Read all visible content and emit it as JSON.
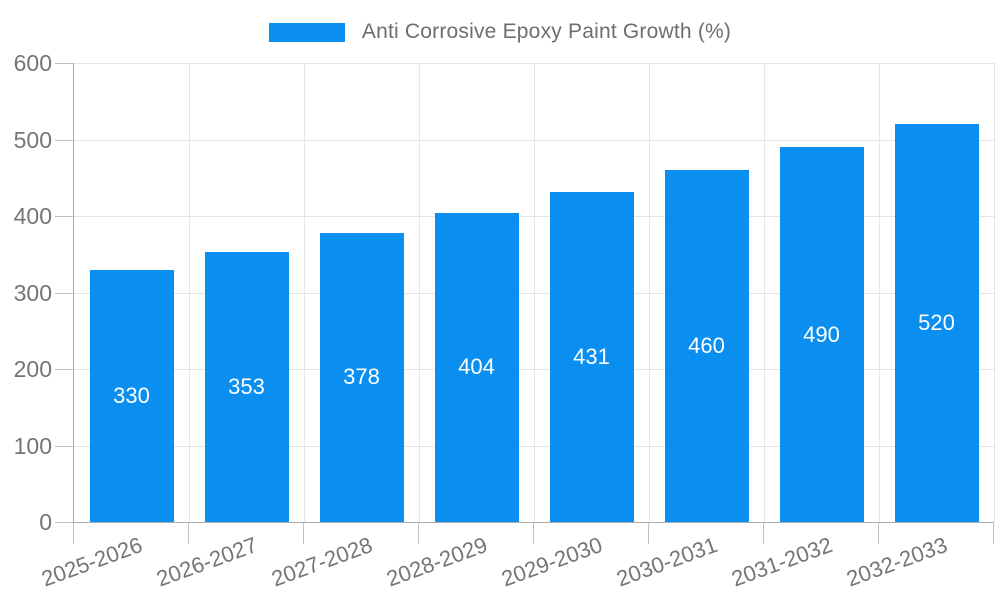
{
  "legend": {
    "label": "Anti Corrosive Epoxy Paint Growth (%)"
  },
  "colors": {
    "bar": "#0a8ff0",
    "grid": "#e5e5e5",
    "axis": "#ababab",
    "tick_mark": "#c2c2c2",
    "tick_text": "#757575",
    "legend_text": "#6e6e6e",
    "value_label_text": "#ffffff",
    "background": "#ffffff"
  },
  "chart_data": {
    "type": "bar",
    "title": "Anti Corrosive Epoxy Paint Growth (%)",
    "categories": [
      "2025-2026",
      "2026-2027",
      "2027-2028",
      "2028-2029",
      "2029-2030",
      "2030-2031",
      "2031-2032",
      "2032-2033"
    ],
    "values": [
      330,
      353,
      378,
      404,
      431,
      460,
      490,
      520
    ],
    "series": [
      {
        "name": "Anti Corrosive Epoxy Paint Growth (%)",
        "values": [
          330,
          353,
          378,
          404,
          431,
          460,
          490,
          520
        ]
      }
    ],
    "value_labels_shown": true,
    "value_label_position": "inside-center",
    "xlabel": "",
    "ylabel": "",
    "ylim": [
      0,
      600
    ],
    "yticks": [
      0,
      100,
      200,
      300,
      400,
      500,
      600
    ],
    "grid": true,
    "legend_position": "top-center",
    "x_label_rotation_deg": -20
  }
}
